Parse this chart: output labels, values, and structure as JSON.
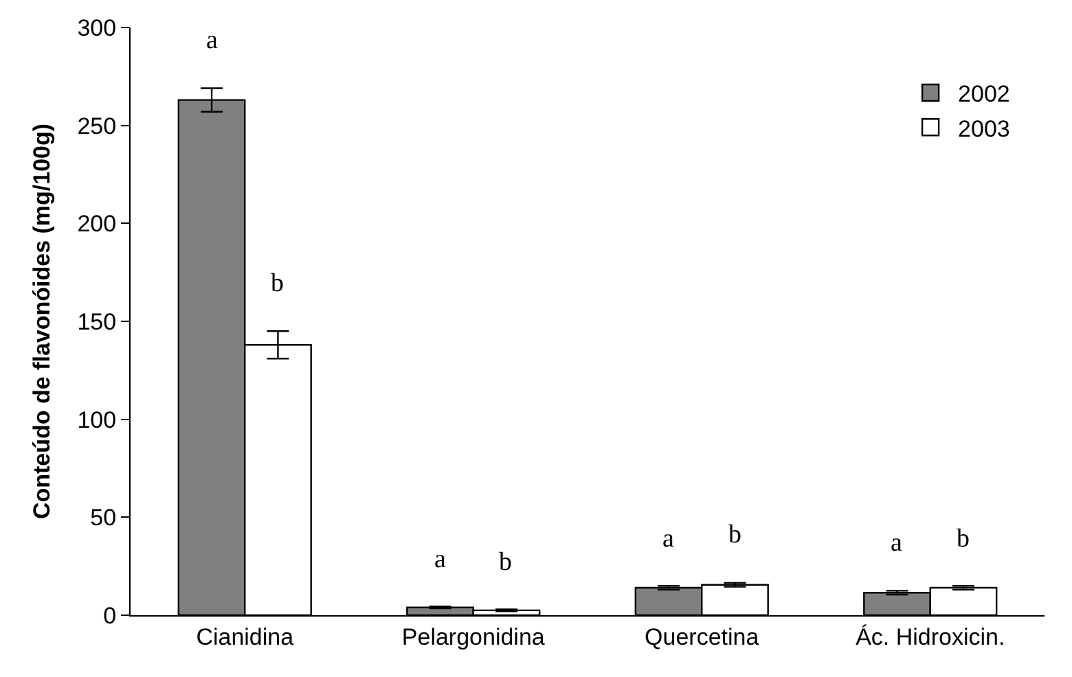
{
  "chart_data": {
    "type": "bar",
    "ylabel": "Conteúdo de flavonóides (mg/100g)",
    "categories": [
      "Cianidina",
      "Pelargonidina",
      "Quercetina",
      "Ác. Hidroxicin."
    ],
    "series": [
      {
        "name": "2002",
        "color": "#808080",
        "values": [
          263,
          4,
          14,
          11.5
        ],
        "errors": [
          6,
          0.5,
          1,
          1
        ]
      },
      {
        "name": "2003",
        "color": "#ffffff",
        "values": [
          138,
          2.5,
          15.5,
          14
        ],
        "errors": [
          7,
          0.5,
          1,
          1
        ]
      }
    ],
    "ylim": [
      0,
      300
    ],
    "yticks": [
      0,
      50,
      100,
      150,
      200,
      250,
      300
    ],
    "legend": "top right",
    "annotations": [
      "a",
      "b",
      "a",
      "b",
      "a",
      "b",
      "a",
      "b"
    ]
  }
}
